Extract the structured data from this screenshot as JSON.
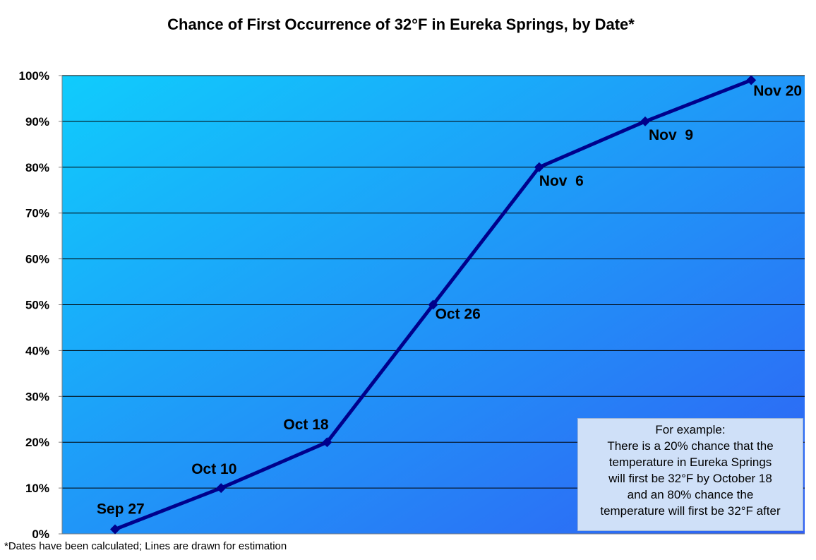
{
  "chart_data": {
    "type": "line",
    "title": "Chance of First Occurrence of 32°F in Eureka Springs, by Date*",
    "xlabel": "",
    "ylabel": "",
    "ylim": [
      0,
      100
    ],
    "y_tick_labels": [
      "0%",
      "10%",
      "20%",
      "30%",
      "40%",
      "50%",
      "60%",
      "70%",
      "80%",
      "90%",
      "100%"
    ],
    "grid": true,
    "series": [
      {
        "color": "#00008b",
        "points": [
          {
            "label": "Sep 27",
            "y": 1
          },
          {
            "label": "Oct 10",
            "y": 10
          },
          {
            "label": "Oct 18",
            "y": 20
          },
          {
            "label": "Oct 26",
            "y": 50
          },
          {
            "label": "Nov  6",
            "y": 80
          },
          {
            "label": "Nov  9",
            "y": 90
          },
          {
            "label": "Nov 20",
            "y": 99
          }
        ]
      }
    ],
    "annotation": {
      "lines": [
        "For example:",
        "There is a 20% chance that the",
        "temperature in Eureka Springs",
        "will first be 32°F by October 18",
        "and an 80% chance the",
        "temperature will first be 32°F after"
      ]
    },
    "footnote": "*Dates have been calculated; Lines are drawn for estimation"
  }
}
